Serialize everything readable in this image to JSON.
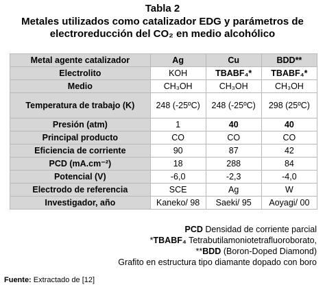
{
  "header": {
    "label": "Tabla 2",
    "title": "Metales utilizados como catalizador EDG y parámetros de electroreducción del CO₂ en medio alcohólico"
  },
  "table": {
    "header": [
      "Metal agente catalizador",
      "Ag",
      "Cu",
      "BDD**"
    ],
    "rows": [
      [
        "Electrolito",
        "KOH",
        "TBABF₄*",
        "TBABF₄*"
      ],
      [
        "Medio",
        "CH₃OH",
        "CH₃OH",
        "CH₃OH"
      ],
      [
        "Temperatura de trabajo (K)",
        "248 (-25ºC)",
        "248 (-25ºC)",
        "298 (25ºC)"
      ],
      [
        "Presión (atm)",
        "1",
        "40",
        "40"
      ],
      [
        "Principal producto",
        "CO",
        "CO",
        "CO"
      ],
      [
        "Eficiencia de corriente",
        "90",
        "87",
        "42"
      ],
      [
        "PCD (mA.cm⁻²)",
        "18",
        "288",
        "84"
      ],
      [
        "Potencial (V)",
        "-6,0",
        "-2,3",
        "-4,0"
      ],
      [
        "Electrodo de referencia",
        "SCE",
        "Ag",
        "W"
      ],
      [
        "Investigador, año",
        "Kaneko/ 98",
        "Saeki/ 95",
        "Aoyagi/ 00"
      ]
    ]
  },
  "notes": [
    {
      "term": "PCD",
      "text": "Densidad de corriente parcial"
    },
    {
      "prefix": "*",
      "term": "TBABF₄",
      "text": "Tetrabutilamoniotetrafluoroborato,"
    },
    {
      "prefix": "**",
      "term": "BDD",
      "text": "(Boron-Doped Diamond)"
    },
    {
      "text": "Grafito en estructura tipo diamante dopado con boro"
    }
  ],
  "source": {
    "label": "Fuente:",
    "text": "Extractado de [12]"
  }
}
